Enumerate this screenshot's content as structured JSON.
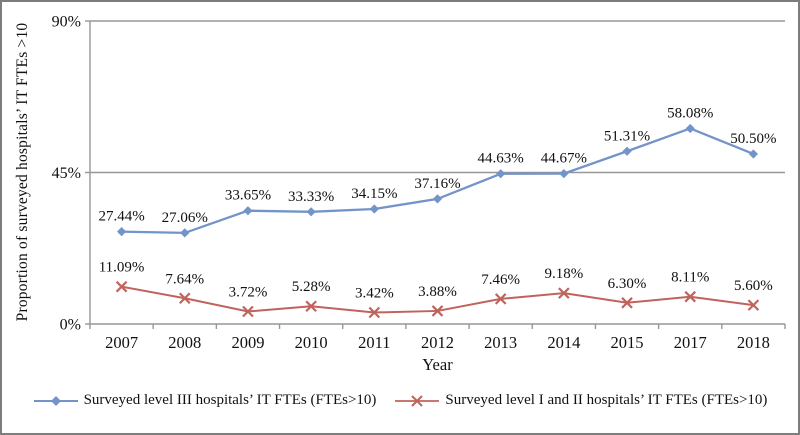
{
  "figure": {
    "y_axis_title": "Proportion of surveyed hospitals’ IT FTEs >10",
    "x_axis_title": "Year"
  },
  "chart_data": {
    "type": "line",
    "x": [
      "2007",
      "2008",
      "2009",
      "2010",
      "2011",
      "2012",
      "2013",
      "2014",
      "2015",
      "2017",
      "2018"
    ],
    "xlabel": "Year",
    "ylabel": "Proportion of surveyed hospitals’ IT FTEs >10",
    "ylim": [
      0,
      90
    ],
    "yticks": [
      {
        "value": 0,
        "label": "0%"
      },
      {
        "value": 45,
        "label": "45%"
      },
      {
        "value": 90,
        "label": "90%"
      }
    ],
    "grid": "horizontal gridlines at 45% and 90%",
    "legend_position": "bottom",
    "series": [
      {
        "name": "Surveyed level III hospitals’ IT FTEs (FTEs>10)",
        "marker": "diamond",
        "color": "#7394c8",
        "values": [
          27.44,
          27.06,
          33.65,
          33.33,
          34.15,
          37.16,
          44.63,
          44.67,
          51.31,
          58.08,
          50.5
        ],
        "labels": [
          "27.44%",
          "27.06%",
          "33.65%",
          "33.33%",
          "34.15%",
          "37.16%",
          "44.63%",
          "44.67%",
          "51.31%",
          "58.08%",
          "50.50%"
        ]
      },
      {
        "name": "Surveyed level I and II hospitals’ IT FTEs (FTEs>10)",
        "marker": "x",
        "color": "#c0635c",
        "values": [
          11.09,
          7.64,
          3.72,
          5.28,
          3.42,
          3.88,
          7.46,
          9.18,
          6.3,
          8.11,
          5.6
        ],
        "labels": [
          "11.09%",
          "7.64%",
          "3.72%",
          "5.28%",
          "3.42%",
          "3.88%",
          "7.46%",
          "9.18%",
          "6.30%",
          "8.11%",
          "5.60%"
        ]
      }
    ],
    "colors": {
      "axis_gray": "#979797",
      "text": "#111111"
    }
  }
}
